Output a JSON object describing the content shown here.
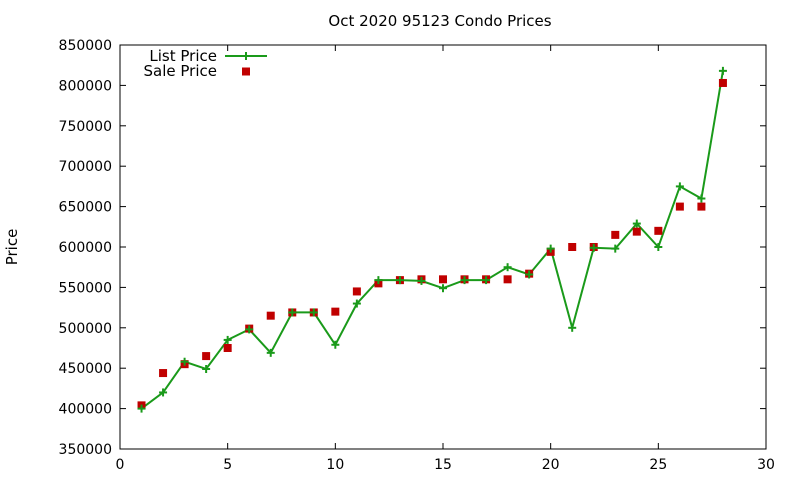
{
  "chart_data": {
    "type": "line",
    "title": "Oct 2020 95123 Condo Prices",
    "xlabel": "",
    "ylabel": "Price",
    "xlim": [
      0,
      30
    ],
    "ylim": [
      350000,
      850000
    ],
    "xticks": [
      0,
      5,
      10,
      15,
      20,
      25,
      30
    ],
    "yticks": [
      350000,
      400000,
      450000,
      500000,
      550000,
      600000,
      650000,
      700000,
      750000,
      800000,
      850000
    ],
    "grid": false,
    "legend_position": "top-left",
    "series": [
      {
        "name": "List Price",
        "style": "line-plus",
        "color": "#1a9a1a",
        "x": [
          1,
          2,
          3,
          4,
          5,
          6,
          7,
          8,
          9,
          10,
          11,
          12,
          13,
          14,
          15,
          16,
          17,
          18,
          19,
          20,
          21,
          22,
          23,
          24,
          25,
          26,
          27,
          28
        ],
        "y": [
          400000,
          420000,
          458000,
          449000,
          485000,
          498000,
          469000,
          519000,
          519000,
          479000,
          530000,
          559000,
          559000,
          558000,
          549000,
          559000,
          559000,
          575000,
          566000,
          598000,
          500000,
          599000,
          598000,
          629000,
          600000,
          675000,
          660000,
          818000
        ]
      },
      {
        "name": "Sale Price",
        "style": "square-points",
        "color": "#c00000",
        "x": [
          1,
          2,
          3,
          4,
          5,
          6,
          7,
          8,
          9,
          10,
          11,
          12,
          13,
          14,
          15,
          16,
          17,
          18,
          19,
          20,
          21,
          22,
          23,
          24,
          25,
          26,
          27,
          28
        ],
        "y": [
          404000,
          444000,
          455000,
          465000,
          475000,
          499000,
          515000,
          519000,
          519000,
          520000,
          545000,
          555000,
          559000,
          560000,
          560000,
          560000,
          560000,
          560000,
          567000,
          594000,
          600000,
          600000,
          615000,
          619000,
          620000,
          650000,
          650000,
          803000
        ]
      }
    ]
  }
}
